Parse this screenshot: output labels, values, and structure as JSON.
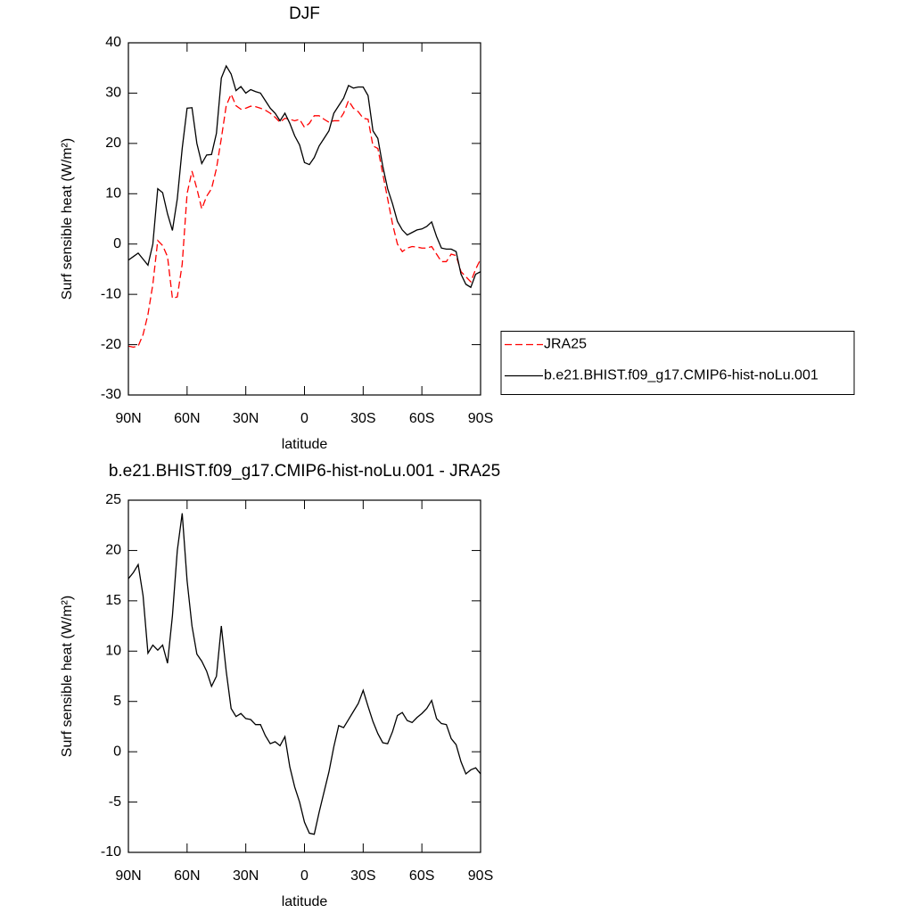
{
  "chart_data": [
    {
      "type": "line",
      "title": "DJF",
      "x_label": "latitude",
      "y_label": "Surf sensible heat (W/m²)",
      "x": [
        90,
        87.5,
        85,
        82.5,
        80,
        77.5,
        75,
        72.5,
        70,
        67.5,
        65,
        62.5,
        60,
        57.5,
        55,
        52.5,
        50,
        47.5,
        45,
        42.5,
        40,
        37.5,
        35,
        32.5,
        30,
        27.5,
        25,
        22.5,
        20,
        17.5,
        15,
        12.5,
        10,
        7.5,
        5,
        2.5,
        0,
        -2.5,
        -5,
        -7.5,
        -10,
        -12.5,
        -15,
        -17.5,
        -20,
        -22.5,
        -25,
        -27.5,
        -30,
        -32.5,
        -35,
        -37.5,
        -40,
        -42.5,
        -45,
        -47.5,
        -50,
        -52.5,
        -55,
        -57.5,
        -60,
        -62.5,
        -65,
        -67.5,
        -70,
        -72.5,
        -75,
        -77.5,
        -80,
        -82.5,
        -85,
        -87.5,
        -90
      ],
      "series": [
        {
          "name": "JRA25",
          "color": "#ff0000",
          "dash": "dashed",
          "values": [
            -20.3,
            -20.5,
            -20.3,
            -18,
            -14,
            -8,
            0.7,
            -0.3,
            -2.5,
            -10.8,
            -10.5,
            -4,
            10,
            14.5,
            11,
            7,
            9.5,
            11,
            15,
            21,
            27.5,
            29.8,
            27.5,
            26.8,
            27,
            27.4,
            27.3,
            27,
            26.6,
            26,
            25.2,
            24.2,
            25,
            24.8,
            24.5,
            24.8,
            23.2,
            24,
            25.5,
            25.5,
            24.8,
            24.2,
            24.5,
            24.5,
            26,
            28.5,
            27,
            26.3,
            25,
            24.8,
            19.5,
            19,
            14,
            9,
            4,
            0,
            -1.5,
            -0.8,
            -0.5,
            -0.6,
            -0.8,
            -0.8,
            -0.5,
            -2,
            -3.5,
            -3.5,
            -2,
            -2.3,
            -5.5,
            -6.5,
            -7.5,
            -5,
            -3
          ]
        },
        {
          "name": "b.e21.BHIST.f09_g17.CMIP6-hist-noLu.001",
          "color": "#000000",
          "dash": "solid",
          "values": [
            -3.2,
            -2.5,
            -1.8,
            -3,
            -4.2,
            0,
            11,
            10.2,
            6,
            2.7,
            9,
            19,
            27,
            27.1,
            20,
            16,
            17.7,
            17.8,
            22,
            33,
            35.4,
            33.8,
            30.5,
            31.3,
            30,
            30.7,
            30.3,
            30,
            28.5,
            27,
            26,
            24.5,
            26,
            24,
            21.5,
            19.7,
            16.2,
            15.8,
            17.2,
            19.5,
            21,
            22.5,
            26,
            27.5,
            29,
            31.5,
            31,
            31.2,
            31.2,
            29.5,
            22.5,
            21,
            15.5,
            11,
            8,
            4.5,
            2.8,
            1.8,
            2.3,
            2.8,
            3,
            3.5,
            4.4,
            1.5,
            -0.8,
            -1,
            -1,
            -1.5,
            -6,
            -8,
            -8.6,
            -6,
            -5.5
          ]
        }
      ],
      "xlim": [
        90,
        -90
      ],
      "xticks": [
        {
          "value": 90,
          "label": "90N"
        },
        {
          "value": 60,
          "label": "60N"
        },
        {
          "value": 30,
          "label": "30N"
        },
        0,
        {
          "value": -30,
          "label": "30S"
        },
        {
          "value": -60,
          "label": "60S"
        },
        {
          "value": -90,
          "label": "90S"
        }
      ],
      "ylim": [
        -30,
        40
      ],
      "yticks": [
        -30,
        -20,
        -10,
        0,
        10,
        20,
        30,
        40
      ],
      "legend": "right"
    },
    {
      "type": "line",
      "title": "b.e21.BHIST.f09_g17.CMIP6-hist-noLu.001 - JRA25",
      "x_label": "latitude",
      "y_label": "Surf sensible heat (W/m²)",
      "x": [
        90,
        87.5,
        85,
        82.5,
        80,
        77.5,
        75,
        72.5,
        70,
        67.5,
        65,
        62.5,
        60,
        57.5,
        55,
        52.5,
        50,
        47.5,
        45,
        42.5,
        40,
        37.5,
        35,
        32.5,
        30,
        27.5,
        25,
        22.5,
        20,
        17.5,
        15,
        12.5,
        10,
        7.5,
        5,
        2.5,
        0,
        -2.5,
        -5,
        -7.5,
        -10,
        -12.5,
        -15,
        -17.5,
        -20,
        -22.5,
        -25,
        -27.5,
        -30,
        -32.5,
        -35,
        -37.5,
        -40,
        -42.5,
        -45,
        -47.5,
        -50,
        -52.5,
        -55,
        -57.5,
        -60,
        -62.5,
        -65,
        -67.5,
        -70,
        -72.5,
        -75,
        -77.5,
        -80,
        -82.5,
        -85,
        -87.5,
        -90
      ],
      "values": [
        17.2,
        17.8,
        18.6,
        15.5,
        9.8,
        10.6,
        10.1,
        10.6,
        8.8,
        13.5,
        20,
        23.7,
        17,
        12.5,
        9.7,
        9,
        8,
        6.5,
        7.5,
        12.5,
        8,
        4.3,
        3.5,
        3.8,
        3.3,
        3.2,
        2.7,
        2.7,
        1.6,
        0.8,
        1,
        0.6,
        1.5,
        -1.5,
        -3.5,
        -5,
        -7,
        -8.1,
        -8.2,
        -6,
        -4,
        -2,
        0.5,
        2.6,
        2.4,
        3.2,
        4,
        4.8,
        6.1,
        4.5,
        3,
        1.8,
        0.9,
        0.8,
        2,
        3.6,
        3.9,
        3.1,
        2.9,
        3.4,
        3.8,
        4.3,
        5.1,
        3.3,
        2.8,
        2.7,
        1.3,
        0.7,
        -1,
        -2.2,
        -1.8,
        -1.6,
        -2.2
      ],
      "color": "#000000",
      "xlim": [
        90,
        -90
      ],
      "xticks": [
        {
          "value": 90,
          "label": "90N"
        },
        {
          "value": 60,
          "label": "60N"
        },
        {
          "value": 30,
          "label": "30N"
        },
        0,
        {
          "value": -30,
          "label": "30S"
        },
        {
          "value": -60,
          "label": "60S"
        },
        {
          "value": -90,
          "label": "90S"
        }
      ],
      "ylim": [
        -10,
        25
      ],
      "yticks": [
        -10,
        -5,
        0,
        5,
        10,
        15,
        20,
        25
      ]
    }
  ]
}
